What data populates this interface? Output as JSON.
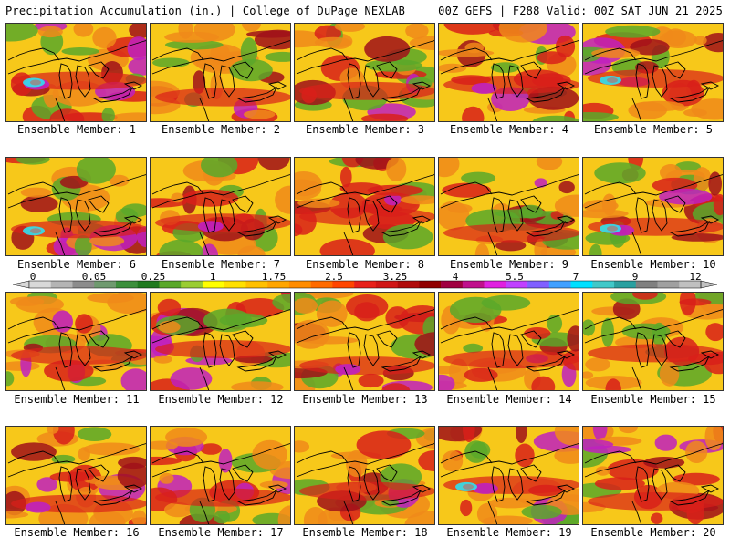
{
  "header": {
    "title_left": "Precipitation Accumulation (in.) | College of DuPage NEXLAB",
    "title_right": "00Z GEFS | F288 Valid: 00Z SAT JUN 21 2025"
  },
  "members": [
    {
      "label": "Ensemble Member: 1"
    },
    {
      "label": "Ensemble Member: 2"
    },
    {
      "label": "Ensemble Member: 3"
    },
    {
      "label": "Ensemble Member: 4"
    },
    {
      "label": "Ensemble Member: 5"
    },
    {
      "label": "Ensemble Member: 6"
    },
    {
      "label": "Ensemble Member: 7"
    },
    {
      "label": "Ensemble Member: 8"
    },
    {
      "label": "Ensemble Member: 9"
    },
    {
      "label": "Ensemble Member: 10"
    },
    {
      "label": "Ensemble Member: 11"
    },
    {
      "label": "Ensemble Member: 12"
    },
    {
      "label": "Ensemble Member: 13"
    },
    {
      "label": "Ensemble Member: 14"
    },
    {
      "label": "Ensemble Member: 15"
    },
    {
      "label": "Ensemble Member: 16"
    },
    {
      "label": "Ensemble Member: 17"
    },
    {
      "label": "Ensemble Member: 18"
    },
    {
      "label": "Ensemble Member: 19"
    },
    {
      "label": "Ensemble Member: 20"
    }
  ],
  "colorbar": {
    "tick_labels": [
      "0",
      "0.05",
      "0.25",
      "1",
      "1.75",
      "2.5",
      "3.25",
      "4",
      "5.5",
      "7",
      "9",
      "12"
    ],
    "colors": [
      "#d8d8d8",
      "#b4b4b4",
      "#8c8c8c",
      "#6f9a6f",
      "#3c8f3c",
      "#1f7a1f",
      "#5aa82a",
      "#9acd32",
      "#ffff00",
      "#ffe000",
      "#ffc000",
      "#ffa500",
      "#ff8c00",
      "#ff6a00",
      "#ff4500",
      "#e8201a",
      "#d01515",
      "#b00a0a",
      "#900000",
      "#a00040",
      "#c0108c",
      "#e020e0",
      "#c040ff",
      "#8060ff",
      "#40a0ff",
      "#00e0ff",
      "#40c8c8",
      "#2aa0a0",
      "#808080",
      "#a0a0a0",
      "#c0c0c0"
    ]
  },
  "palette": {
    "background": "#f7c81a",
    "green": "#5aa82a",
    "dark_green": "#2e8b2e",
    "orange": "#f08a1a",
    "red": "#d8201a",
    "dark_red": "#a0101a",
    "magenta": "#c020c0",
    "cyan": "#30e0f0",
    "gray": "#909090"
  }
}
